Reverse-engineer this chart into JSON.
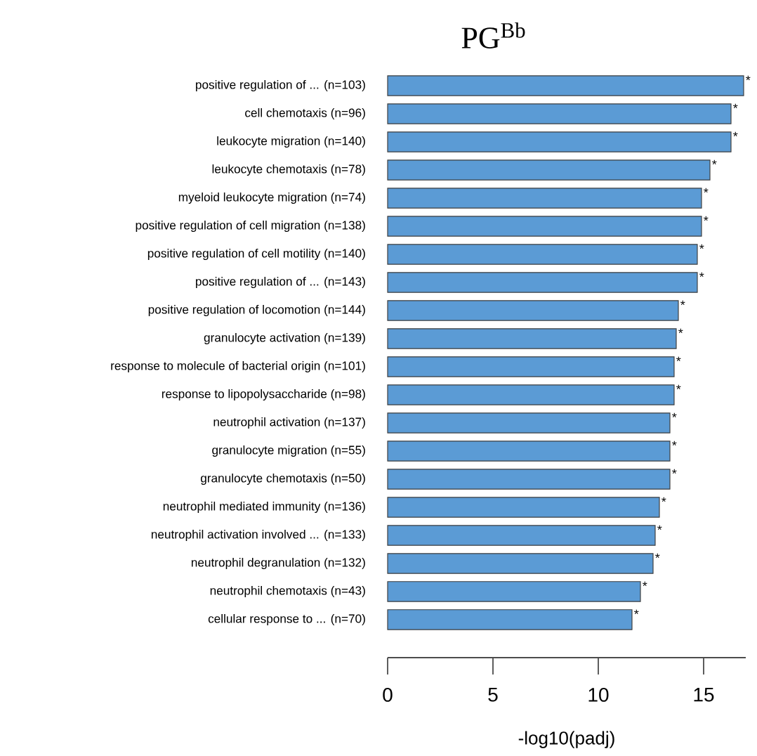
{
  "chart_data": {
    "type": "bar",
    "orientation": "horizontal",
    "title": "PG$^{Bb}$",
    "xlabel": "-log10(padj)",
    "categories": [
      "positive regulation of ... (n=103)",
      "cell chemotaxis (n=96)",
      "leukocyte migration (n=140)",
      "leukocyte chemotaxis (n=78)",
      "myeloid leukocyte migration (n=74)",
      "positive regulation of cell migration (n=138)",
      "positive regulation of cell motility (n=140)",
      "positive regulation of ... (n=143)",
      "positive regulation of locomotion (n=144)",
      "granulocyte activation (n=139)",
      "response to molecule of bacterial origin (n=101)",
      "response to lipopolysaccharide (n=98)",
      "neutrophil activation (n=137)",
      "granulocyte migration (n=55)",
      "granulocyte chemotaxis (n=50)",
      "neutrophil mediated immunity (n=136)",
      "neutrophil activation involved ... (n=133)",
      "neutrophil degranulation (n=132)",
      "neutrophil chemotaxis (n=43)",
      "cellular response to ... (n=70)"
    ],
    "values": [
      16.9,
      16.3,
      16.3,
      15.3,
      14.9,
      14.9,
      14.7,
      14.7,
      13.8,
      13.7,
      13.6,
      13.6,
      13.4,
      13.4,
      13.4,
      12.9,
      12.7,
      12.6,
      12.0,
      11.6
    ],
    "value_labels": [
      "*",
      "*",
      "*",
      "*",
      "*",
      "*",
      "*",
      "*",
      "*",
      "*",
      "*",
      "*",
      "*",
      "*",
      "*",
      "*",
      "*",
      "*",
      "*",
      "*"
    ],
    "color": "#5b9bd5",
    "xlim": [
      0,
      17
    ],
    "xticks": [
      0,
      5,
      10,
      15
    ]
  }
}
